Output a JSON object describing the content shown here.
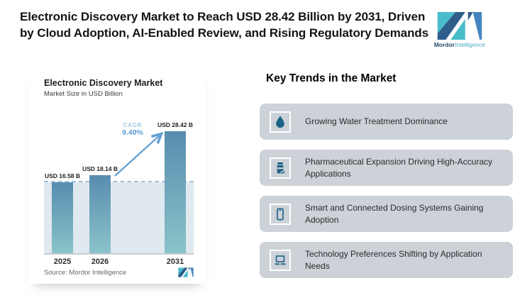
{
  "header": {
    "title": "Electronic Discovery Market to Reach USD 28.42 Billion by 2031, Driven by Cloud Adoption, AI-Enabled Review, and Rising Regulatory Demands"
  },
  "brand": {
    "name_bold": "Mordor",
    "name_light": "Intelligence"
  },
  "chart": {
    "title": "Electronic Discovery Market",
    "subtitle": "Market Size in USD Billion",
    "source": "Source: Mordor Intelligence",
    "cagr_label": "CAGR",
    "cagr_value": "9.40%"
  },
  "chart_data": {
    "type": "bar",
    "title": "Electronic Discovery Market",
    "subtitle": "Market Size in USD Billion",
    "ylabel": "Market Size in USD Billion",
    "categories": [
      "2025",
      "2026",
      "2031"
    ],
    "values": [
      16.58,
      18.14,
      28.42
    ],
    "bar_labels": [
      "USD 16.58 B",
      "USD 18.14 B",
      "USD 28.42 B"
    ],
    "ylim": [
      0,
      28.42
    ],
    "grid": false,
    "legend": false,
    "reference_line": {
      "value": 16.58,
      "style": "dashed"
    },
    "annotations": [
      {
        "text": "CAGR 9.40%",
        "type": "growth-arrow",
        "from": "2026",
        "to": "2031"
      }
    ],
    "source": "Source: Mordor Intelligence"
  },
  "trends": {
    "heading": "Key Trends in the Market",
    "items": [
      {
        "icon": "water-drop-icon",
        "text": "Growing Water Treatment Dominance"
      },
      {
        "icon": "pill-bottle-icon",
        "text": "Pharmaceutical Expansion Driving High-Accuracy Applications"
      },
      {
        "icon": "smartphone-icon",
        "text": "Smart and Connected Dosing Systems Gaining Adoption"
      },
      {
        "icon": "laptop-icon",
        "text": "Technology Preferences Shifting by Application Needs"
      }
    ]
  },
  "colors": {
    "bar_top": "#588caf",
    "bar_bottom": "#8ac3c9",
    "plot_band": "#dfe9ef",
    "dashed_line": "#a3c2da",
    "arrow": "#64a0d2",
    "cagr_label": "#9ec6e2",
    "cagr_value": "#5b9cd6",
    "card_bg": "#ccd2d8",
    "icon": "#1d6387",
    "brand_navy": "#2f5d8c",
    "brand_teal": "#49bdc9",
    "brand_blue": "#4585bf"
  }
}
